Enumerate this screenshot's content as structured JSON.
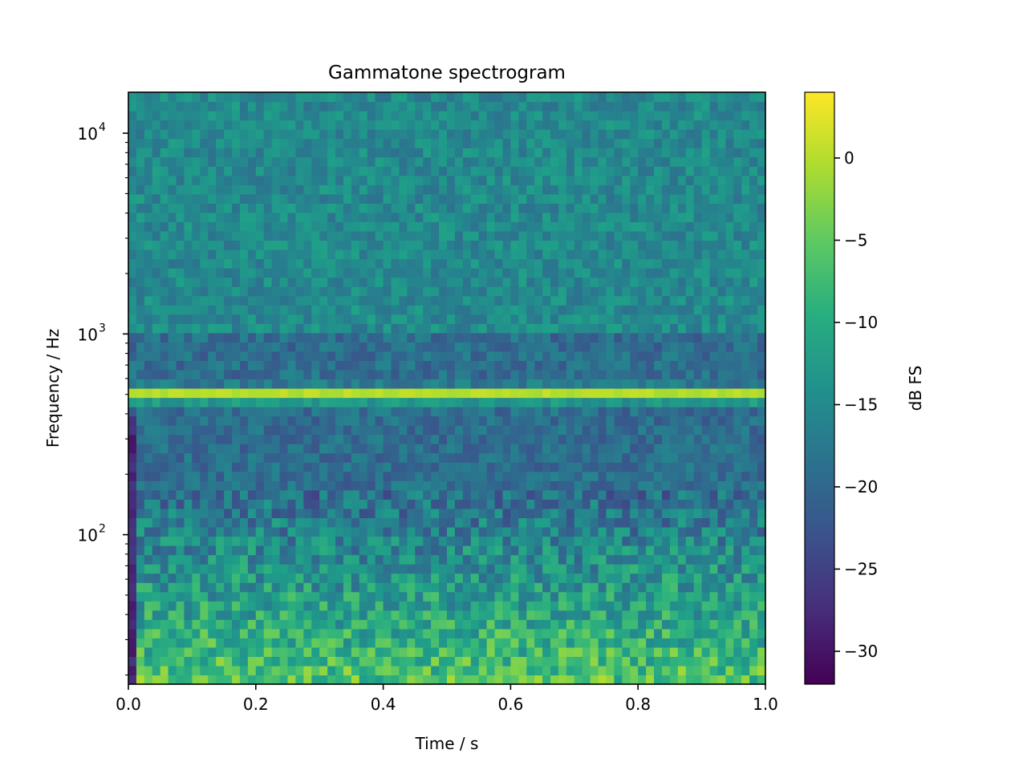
{
  "chart_data": {
    "type": "heatmap",
    "title": "Gammatone spectrogram",
    "xlabel": "Time / s",
    "ylabel": "Frequency / Hz",
    "xlim": [
      0.0,
      1.0
    ],
    "ylim": [
      18,
      16000
    ],
    "yscale": "log",
    "x_ticks": [
      0.0,
      0.2,
      0.4,
      0.6,
      0.8,
      1.0
    ],
    "x_tick_labels": [
      "0.0",
      "0.2",
      "0.4",
      "0.6",
      "0.8",
      "1.0"
    ],
    "y_ticks": [
      100,
      1000,
      10000
    ],
    "y_tick_labels": [
      {
        "base": "10",
        "exp": "2"
      },
      {
        "base": "10",
        "exp": "3"
      },
      {
        "base": "10",
        "exp": "4"
      }
    ],
    "colormap": "viridis",
    "colorbar": {
      "label": "dB FS",
      "range": [
        -32,
        4
      ],
      "ticks": [
        0,
        -5,
        -10,
        -15,
        -20,
        -25,
        -30
      ],
      "tick_labels": [
        "0",
        "−5",
        "−10",
        "−15",
        "−20",
        "−25",
        "−30"
      ]
    },
    "features": {
      "tone_band_hz": 500,
      "tone_band_level_db": 1,
      "high_freq_level_db": -15,
      "mid_freq_level_db": -19,
      "low_freq_level_db": -6
    },
    "grid": false
  }
}
